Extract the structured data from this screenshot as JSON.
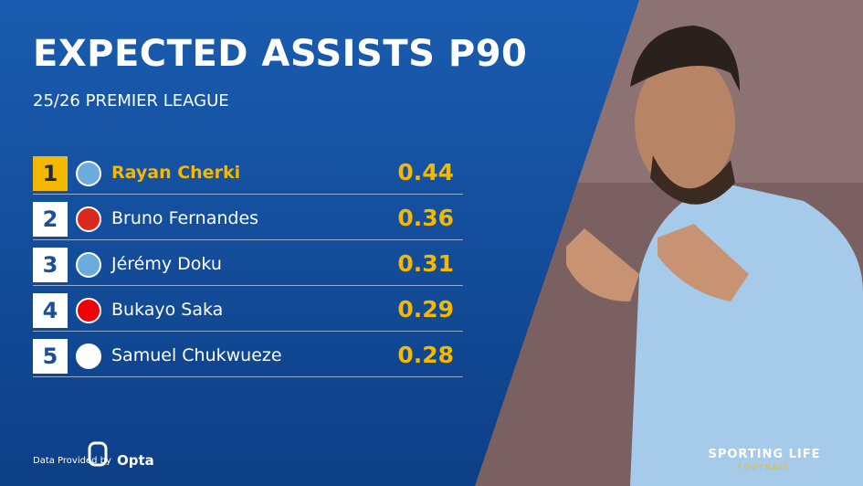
{
  "header": {
    "title": "EXPECTED ASSISTS P90",
    "subtitle": "25/26 PREMIER LEAGUE"
  },
  "table": {
    "rows": [
      {
        "rank": 1,
        "player": "Rayan Cherki",
        "value": 0.44
      },
      {
        "rank": 2,
        "player": "Bruno Fernandes",
        "value": 0.36
      },
      {
        "rank": 3,
        "player": "Jérémy Doku",
        "value": 0.31
      },
      {
        "rank": 4,
        "player": "Bukayo Saka",
        "value": 0.29
      },
      {
        "rank": 5,
        "player": "Samuel Chukwueze",
        "value": 0.28
      }
    ]
  },
  "footer": {
    "credit": "Data Provided by",
    "provider": "Opta",
    "brand": "SPORTING LIFE",
    "brand_sub": "FOOTBALL"
  }
}
